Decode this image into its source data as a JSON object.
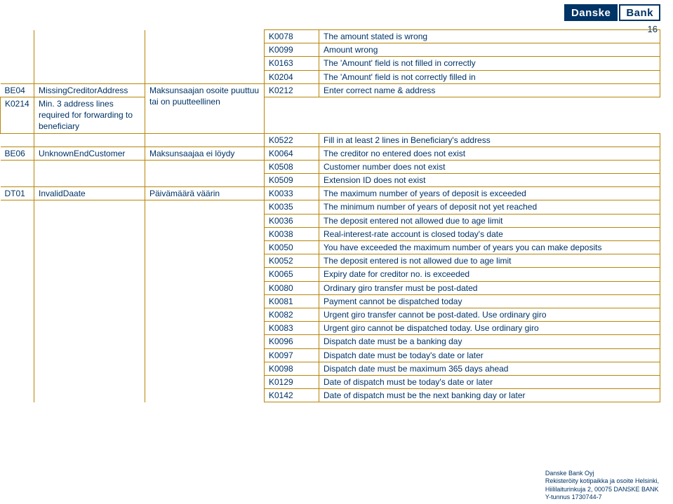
{
  "logo": {
    "left": "Danske",
    "right": "Bank"
  },
  "page_number": "16",
  "rows": [
    {
      "c0": "",
      "c1": "",
      "c2": "",
      "c3": "K0078",
      "c4": "The amount stated is wrong",
      "stub": true
    },
    {
      "c0": "",
      "c1": "",
      "c2": "",
      "c3": "K0099",
      "c4": "Amount wrong",
      "stub": true
    },
    {
      "c0": "",
      "c1": "",
      "c2": "",
      "c3": "K0163",
      "c4": "The 'Amount' field is not filled in correctly",
      "stub": true
    },
    {
      "c0": "",
      "c1": "",
      "c2": "",
      "c3": "K0204",
      "c4": "The 'Amount' field is not correctly filled in",
      "stub": true
    },
    {
      "c0": "BE04",
      "c1": "MissingCreditorAddress",
      "c2": "Maksunsaajan osoite puuttuu tai on puutteellinen",
      "c3": "K0212",
      "c4": "Enter correct name & address",
      "stub": false,
      "span2": true
    },
    {
      "c0": "",
      "c1": "",
      "c2": "",
      "c3": "K0214",
      "c4": "Min. 3 address lines required for forwarding to beneficiary",
      "stub": true,
      "skip012": true
    },
    {
      "c0": "",
      "c1": "",
      "c2": "",
      "c3": "K0522",
      "c4": "Fill in at least 2 lines in Beneficiary's address",
      "stub": true
    },
    {
      "c0": "BE06",
      "c1": "UnknownEndCustomer",
      "c2": "Maksunsaajaa ei löydy",
      "c3": "K0064",
      "c4": "The creditor no entered does not exist",
      "stub": false
    },
    {
      "c0": "",
      "c1": "",
      "c2": "",
      "c3": "K0508",
      "c4": "Customer number does not exist",
      "stub": true
    },
    {
      "c0": "",
      "c1": "",
      "c2": "",
      "c3": "K0509",
      "c4": "Extension ID does not exist",
      "stub": true
    },
    {
      "c0": "DT01",
      "c1": "InvalidDaate",
      "c2": "Päivämäärä väärin",
      "c3": "K0033",
      "c4": "The maximum number of years of deposit is exceeded",
      "stub": false
    },
    {
      "c0": "",
      "c1": "",
      "c2": "",
      "c3": "K0035",
      "c4": "The minimum number of years of deposit not yet reached",
      "stub": true
    },
    {
      "c0": "",
      "c1": "",
      "c2": "",
      "c3": "K0036",
      "c4": "The deposit entered not allowed due to age limit",
      "stub": true
    },
    {
      "c0": "",
      "c1": "",
      "c2": "",
      "c3": "K0038",
      "c4": "Real-interest-rate account is closed today's date",
      "stub": true
    },
    {
      "c0": "",
      "c1": "",
      "c2": "",
      "c3": "K0050",
      "c4": "You have exceeded the maximum number of years you can make deposits",
      "stub": true
    },
    {
      "c0": "",
      "c1": "",
      "c2": "",
      "c3": "K0052",
      "c4": "The deposit entered is not allowed due to age limit",
      "stub": true
    },
    {
      "c0": "",
      "c1": "",
      "c2": "",
      "c3": "K0065",
      "c4": "Expiry date for creditor no. is exceeded",
      "stub": true
    },
    {
      "c0": "",
      "c1": "",
      "c2": "",
      "c3": "K0080",
      "c4": "Ordinary giro transfer must be post-dated",
      "stub": true
    },
    {
      "c0": "",
      "c1": "",
      "c2": "",
      "c3": "K0081",
      "c4": "Payment cannot be dispatched today",
      "stub": true
    },
    {
      "c0": "",
      "c1": "",
      "c2": "",
      "c3": "K0082",
      "c4": "Urgent giro transfer cannot be post-dated. Use ordinary giro",
      "stub": true
    },
    {
      "c0": "",
      "c1": "",
      "c2": "",
      "c3": "K0083",
      "c4": "Urgent giro cannot be dispatched today. Use ordinary giro",
      "stub": true
    },
    {
      "c0": "",
      "c1": "",
      "c2": "",
      "c3": "K0096",
      "c4": "Dispatch date must be a banking day",
      "stub": true
    },
    {
      "c0": "",
      "c1": "",
      "c2": "",
      "c3": "K0097",
      "c4": "Dispatch date must be today's date or later",
      "stub": true
    },
    {
      "c0": "",
      "c1": "",
      "c2": "",
      "c3": "K0098",
      "c4": "Dispatch date must be maximum 365 days ahead",
      "stub": true
    },
    {
      "c0": "",
      "c1": "",
      "c2": "",
      "c3": "K0129",
      "c4": "Date of dispatch must be today's date or later",
      "stub": true
    },
    {
      "c0": "",
      "c1": "",
      "c2": "",
      "c3": "K0142",
      "c4": "Date of dispatch must be the next banking day or later",
      "stub": true
    }
  ],
  "footer": {
    "line1": "Danske Bank Oyj",
    "line2": "Rekisteröity kotipaikka ja osoite Helsinki,",
    "line3": "Hiililaiturinkuja 2, 00075 DANSKE BANK",
    "line4": "Y-tunnus 1730744-7"
  },
  "colors": {
    "brand": "#003366",
    "border": "#b8860b",
    "background": "#ffffff"
  }
}
